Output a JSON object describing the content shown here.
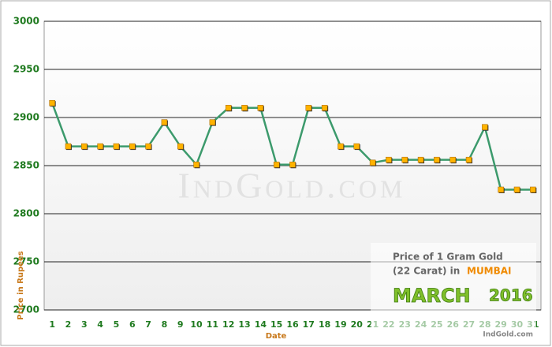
{
  "chart_data": {
    "type": "line",
    "categories": [
      "1",
      "2",
      "3",
      "4",
      "5",
      "6",
      "7",
      "8",
      "9",
      "10",
      "11",
      "12",
      "13",
      "14",
      "15",
      "16",
      "17",
      "18",
      "19",
      "20",
      "21",
      "22",
      "23",
      "24",
      "25",
      "26",
      "27",
      "28",
      "29",
      "30",
      "31"
    ],
    "values": [
      2915,
      2870,
      2870,
      2870,
      2870,
      2870,
      2870,
      2895,
      2870,
      2851,
      2895,
      2910,
      2910,
      2910,
      2851,
      2851,
      2910,
      2910,
      2870,
      2870,
      2853,
      2856,
      2856,
      2856,
      2856,
      2856,
      2856,
      2890,
      2825,
      2825,
      2825
    ],
    "color": "#3c9a6c",
    "marker_color": "#ffb300",
    "ylim": [
      2700,
      3000
    ],
    "yticks": [
      2700,
      2750,
      2800,
      2850,
      2900,
      2950,
      3000
    ],
    "grid": true,
    "x_label": "Date",
    "y_label": "Price in Rupees",
    "watermark": "IndGold.com",
    "annotation": {
      "line1": "Price of 1 Gram Gold",
      "line2": "(22 Carat) in",
      "city": "MUMBAI",
      "month": "MARCH",
      "year": "2016",
      "source": "IndGold.com"
    }
  }
}
